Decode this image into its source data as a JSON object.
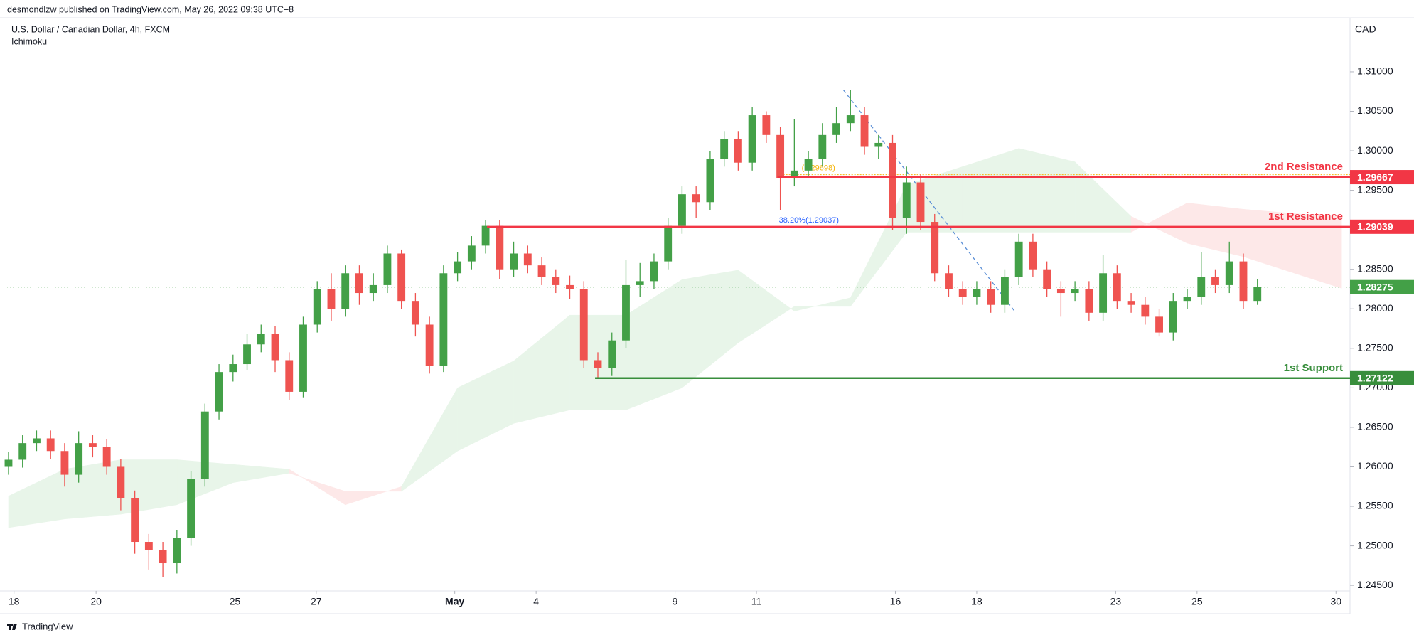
{
  "header": {
    "byline": "desmondlzw published on TradingView.com, May 26, 2022 09:38 UTC+8",
    "footer": "TradingView"
  },
  "chart_data": {
    "type": "candlestick",
    "title": "U.S. Dollar / Canadian Dollar, 4h, FXCM",
    "subtitle": "Ichimoku",
    "y_axis_label": "CAD",
    "up_color": "#43a047",
    "down_color": "#ef5350",
    "open": [
      1.26,
      1.2609,
      1.263,
      1.2636,
      1.262,
      1.259,
      1.263,
      1.2625,
      1.26,
      1.256,
      1.2505,
      1.2495,
      1.2478,
      1.251,
      1.2585,
      1.267,
      1.272,
      1.273,
      1.2755,
      1.2768,
      1.2735,
      1.2695,
      1.278,
      1.2825,
      1.28,
      1.2845,
      1.282,
      1.283,
      1.287,
      1.281,
      1.278,
      1.2728,
      1.2845,
      1.286,
      1.288,
      1.2905,
      1.285,
      1.287,
      1.2855,
      1.284,
      1.283,
      1.2825,
      1.2735,
      1.2725,
      1.276,
      1.283,
      1.2835,
      1.286,
      1.2905,
      1.2945,
      1.2935,
      1.299,
      1.3015,
      1.2985,
      1.3045,
      1.302,
      1.2965,
      1.2975,
      1.299,
      1.302,
      1.3035,
      1.3045,
      1.3005,
      1.301,
      1.2915,
      1.296,
      1.291,
      1.2845,
      1.2825,
      1.2815,
      1.2825,
      1.2805,
      1.284,
      1.2885,
      1.285,
      1.2825,
      1.282,
      1.2825,
      1.2795,
      1.2845,
      1.281,
      1.2805,
      1.279,
      1.277,
      1.281,
      1.2815,
      1.284,
      1.283,
      1.286,
      1.281
    ],
    "high": [
      1.2619,
      1.264,
      1.2646,
      1.2646,
      1.263,
      1.2645,
      1.264,
      1.2635,
      1.261,
      1.257,
      1.2515,
      1.2505,
      1.252,
      1.2595,
      1.268,
      1.273,
      1.2742,
      1.2768,
      1.278,
      1.2778,
      1.2745,
      1.279,
      1.2835,
      1.2845,
      1.2855,
      1.2855,
      1.2845,
      1.288,
      1.2875,
      1.282,
      1.279,
      1.2855,
      1.2872,
      1.2892,
      1.2912,
      1.2912,
      1.2885,
      1.288,
      1.2865,
      1.285,
      1.2842,
      1.2835,
      1.2745,
      1.277,
      1.2862,
      1.2858,
      1.287,
      1.2915,
      1.2955,
      1.2955,
      1.3,
      1.3025,
      1.3025,
      1.3055,
      1.305,
      1.303,
      1.304,
      1.3,
      1.3035,
      1.3055,
      1.3077,
      1.3055,
      1.302,
      1.302,
      1.298,
      1.297,
      1.292,
      1.2855,
      1.2835,
      1.2835,
      1.2835,
      1.285,
      1.2895,
      1.2895,
      1.286,
      1.2835,
      1.2835,
      1.2835,
      1.2868,
      1.2855,
      1.282,
      1.2815,
      1.28,
      1.282,
      1.2825,
      1.2872,
      1.285,
      1.2885,
      1.287,
      1.2838
    ],
    "low": [
      1.259,
      1.2599,
      1.262,
      1.261,
      1.2575,
      1.258,
      1.2612,
      1.259,
      1.2545,
      1.249,
      1.247,
      1.246,
      1.2465,
      1.25,
      1.2575,
      1.266,
      1.2708,
      1.2722,
      1.2745,
      1.272,
      1.2685,
      1.2688,
      1.277,
      1.2785,
      1.279,
      1.2805,
      1.281,
      1.282,
      1.28,
      1.2765,
      1.2718,
      1.272,
      1.2835,
      1.285,
      1.287,
      1.2838,
      1.284,
      1.2845,
      1.283,
      1.282,
      1.2812,
      1.2725,
      1.2712,
      1.2715,
      1.275,
      1.2815,
      1.2825,
      1.285,
      1.2895,
      1.2915,
      1.2925,
      1.298,
      1.2975,
      1.2975,
      1.301,
      1.2925,
      1.2955,
      1.2965,
      1.298,
      1.301,
      1.3025,
      1.2995,
      1.299,
      1.29,
      1.2895,
      1.29,
      1.2835,
      1.2815,
      1.2805,
      1.2805,
      1.2795,
      1.2795,
      1.283,
      1.284,
      1.2815,
      1.279,
      1.281,
      1.2785,
      1.2785,
      1.28,
      1.2795,
      1.278,
      1.2765,
      1.276,
      1.28,
      1.2805,
      1.282,
      1.282,
      1.28,
      1.2805
    ],
    "close": [
      1.2609,
      1.263,
      1.2636,
      1.262,
      1.259,
      1.263,
      1.2625,
      1.26,
      1.256,
      1.2505,
      1.2495,
      1.2478,
      1.251,
      1.2585,
      1.267,
      1.272,
      1.273,
      1.2755,
      1.2768,
      1.2735,
      1.2695,
      1.278,
      1.2825,
      1.28,
      1.2845,
      1.282,
      1.283,
      1.287,
      1.281,
      1.278,
      1.2728,
      1.2845,
      1.286,
      1.288,
      1.2905,
      1.285,
      1.287,
      1.2855,
      1.284,
      1.283,
      1.2825,
      1.2735,
      1.2725,
      1.276,
      1.283,
      1.2835,
      1.286,
      1.2905,
      1.2945,
      1.2935,
      1.299,
      1.3015,
      1.2985,
      1.3045,
      1.302,
      1.2965,
      1.2975,
      1.299,
      1.302,
      1.3035,
      1.3045,
      1.3005,
      1.301,
      1.2915,
      1.296,
      1.291,
      1.2845,
      1.2825,
      1.2815,
      1.2825,
      1.2805,
      1.284,
      1.2885,
      1.285,
      1.2825,
      1.282,
      1.2825,
      1.2795,
      1.2845,
      1.281,
      1.2805,
      1.279,
      1.277,
      1.281,
      1.2815,
      1.284,
      1.283,
      1.286,
      1.281,
      1.28275
    ],
    "cloud": {
      "x": [
        0,
        4,
        8,
        12,
        16,
        20,
        24,
        28,
        32,
        36,
        40,
        44,
        48,
        52,
        56,
        60,
        64,
        68,
        72,
        76,
        80,
        84,
        88,
        92,
        95
      ],
      "span_a": [
        1.2563,
        1.2597,
        1.2609,
        1.2609,
        1.2603,
        1.2597,
        1.2552,
        1.2575,
        1.27,
        1.2734,
        1.2792,
        1.2792,
        1.2837,
        1.2849,
        1.2797,
        1.2814,
        1.2957,
        1.298,
        1.3003,
        1.2986,
        1.2917,
        1.2883,
        1.2866,
        1.2843,
        1.2826
      ],
      "span_b": [
        1.2523,
        1.2534,
        1.254,
        1.2552,
        1.258,
        1.2592,
        1.2569,
        1.2569,
        1.262,
        1.2655,
        1.2672,
        1.2672,
        1.27,
        1.2757,
        1.2803,
        1.2803,
        1.2897,
        1.2897,
        1.2897,
        1.2897,
        1.2897,
        1.2934,
        1.2926,
        1.292,
        1.2917
      ],
      "bull_color": "#e8f5e9",
      "bear_color": "#fde8e8"
    },
    "levels": [
      {
        "name": "2nd Resistance",
        "value": 1.29667,
        "x_from": 54.8,
        "color": "#f23645"
      },
      {
        "name": "1st Resistance",
        "value": 1.29039,
        "x_from": 34.1,
        "color": "#f23645"
      },
      {
        "name": "1st Support",
        "value": 1.27122,
        "x_from": 41.8,
        "color": "#388e3c"
      }
    ],
    "fib": {
      "value": 1.29698,
      "label": "(1.29698)",
      "x_from": 54.8,
      "color": "#f5b50a"
    },
    "fib_note": {
      "value": 1.29037,
      "label": "38.20%(1.29037)",
      "color": "#2962ff"
    },
    "trendline": {
      "x": [
        59.5,
        71.7
      ],
      "y": [
        1.3077,
        1.2797
      ],
      "color": "#5b8fd6"
    },
    "last_price": {
      "value": 1.28275,
      "color": "#43a047"
    },
    "xlim": [
      -0.1,
      95.6
    ],
    "xticks": [
      {
        "value": 0.39,
        "label": "18"
      },
      {
        "value": 6.24,
        "label": "20"
      },
      {
        "value": 16.14,
        "label": "25"
      },
      {
        "value": 21.93,
        "label": "27"
      },
      {
        "value": 31.8,
        "label": "May"
      },
      {
        "value": 37.6,
        "label": "4"
      },
      {
        "value": 47.5,
        "label": "9"
      },
      {
        "value": 53.3,
        "label": "11"
      },
      {
        "value": 63.2,
        "label": "16"
      },
      {
        "value": 69.0,
        "label": "18"
      },
      {
        "value": 78.9,
        "label": "23"
      },
      {
        "value": 84.7,
        "label": "25"
      },
      {
        "value": 94.6,
        "label": "30"
      }
    ],
    "ylim": [
      1.2443,
      1.3168
    ],
    "yticks": [
      {
        "value": 1.245,
        "label": "1.24500"
      },
      {
        "value": 1.25,
        "label": "1.25000"
      },
      {
        "value": 1.255,
        "label": "1.25500"
      },
      {
        "value": 1.26,
        "label": "1.26000"
      },
      {
        "value": 1.265,
        "label": "1.26500"
      },
      {
        "value": 1.27,
        "label": "1.27000"
      },
      {
        "value": 1.275,
        "label": "1.27500"
      },
      {
        "value": 1.28,
        "label": "1.28000"
      },
      {
        "value": 1.285,
        "label": "1.28500"
      },
      {
        "value": 1.29,
        "label": "1.29000"
      },
      {
        "value": 1.295,
        "label": "1.29500"
      },
      {
        "value": 1.3,
        "label": "1.30000"
      },
      {
        "value": 1.305,
        "label": "1.30500"
      },
      {
        "value": 1.31,
        "label": "1.31000"
      }
    ]
  }
}
